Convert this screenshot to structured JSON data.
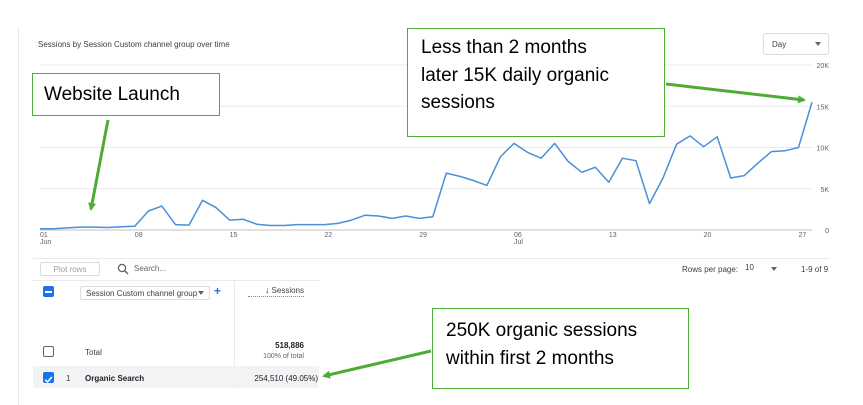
{
  "chart_title": "Sessions by Session Custom channel group over time",
  "granularity_select": {
    "value": "Day",
    "icon": "chevron-down-icon"
  },
  "chart_data": {
    "type": "line",
    "title": "Sessions by Session Custom channel group over time",
    "x_tick_labels": [
      {
        "day": 1,
        "label": "01",
        "sublabel": "Jun"
      },
      {
        "day": 8,
        "label": "08",
        "sublabel": ""
      },
      {
        "day": 15,
        "label": "15",
        "sublabel": ""
      },
      {
        "day": 22,
        "label": "22",
        "sublabel": ""
      },
      {
        "day": 29,
        "label": "29",
        "sublabel": ""
      },
      {
        "day": 36,
        "label": "06",
        "sublabel": "Jul"
      },
      {
        "day": 43,
        "label": "13",
        "sublabel": ""
      },
      {
        "day": 50,
        "label": "20",
        "sublabel": ""
      },
      {
        "day": 57,
        "label": "27",
        "sublabel": ""
      }
    ],
    "y_ticks": [
      {
        "value": 0,
        "label": "0"
      },
      {
        "value": 5000,
        "label": "5K"
      },
      {
        "value": 10000,
        "label": "10K"
      },
      {
        "value": 15000,
        "label": "15K"
      },
      {
        "value": 20000,
        "label": "20K"
      }
    ],
    "ylim": [
      0,
      20000
    ],
    "xlim": [
      1,
      58
    ],
    "grid": true,
    "series": [
      {
        "color": "#4a90d9",
        "points": [
          [
            1,
            150
          ],
          [
            2,
            150
          ],
          [
            3,
            250
          ],
          [
            4,
            350
          ],
          [
            5,
            350
          ],
          [
            6,
            300
          ],
          [
            7,
            400
          ],
          [
            8,
            450
          ],
          [
            9,
            2300
          ],
          [
            10,
            2900
          ],
          [
            11,
            650
          ],
          [
            12,
            600
          ],
          [
            13,
            3600
          ],
          [
            14,
            2700
          ],
          [
            15,
            1200
          ],
          [
            16,
            1300
          ],
          [
            17,
            700
          ],
          [
            18,
            550
          ],
          [
            19,
            550
          ],
          [
            20,
            650
          ],
          [
            21,
            650
          ],
          [
            22,
            650
          ],
          [
            23,
            800
          ],
          [
            24,
            1200
          ],
          [
            25,
            1800
          ],
          [
            26,
            1700
          ],
          [
            27,
            1400
          ],
          [
            28,
            1700
          ],
          [
            29,
            1400
          ],
          [
            30,
            1600
          ],
          [
            31,
            6900
          ],
          [
            32,
            6500
          ],
          [
            33,
            6000
          ],
          [
            34,
            5400
          ],
          [
            35,
            8900
          ],
          [
            36,
            10500
          ],
          [
            37,
            9400
          ],
          [
            38,
            8700
          ],
          [
            39,
            10500
          ],
          [
            40,
            8300
          ],
          [
            41,
            7000
          ],
          [
            42,
            7600
          ],
          [
            43,
            5800
          ],
          [
            44,
            8700
          ],
          [
            45,
            8400
          ],
          [
            46,
            3200
          ],
          [
            47,
            6300
          ],
          [
            48,
            10400
          ],
          [
            49,
            11400
          ],
          [
            50,
            10100
          ],
          [
            51,
            11300
          ],
          [
            52,
            6300
          ],
          [
            53,
            6600
          ],
          [
            54,
            8100
          ],
          [
            55,
            9500
          ],
          [
            56,
            9600
          ],
          [
            57,
            10000
          ],
          [
            58,
            15500
          ]
        ]
      }
    ]
  },
  "toolbar": {
    "plot_rows_label": "Plot rows",
    "search_placeholder": "Search...",
    "rows_per_page_label": "Rows per page:",
    "rows_per_page_value": "10",
    "pagination_text": "1-9 of 9"
  },
  "table": {
    "dimension_label": "Session Custom channel group",
    "metric_header": "Sessions",
    "total_label": "Total",
    "total_value": "518,886",
    "total_pct": "100% of total",
    "rows": [
      {
        "index": "1",
        "channel": "Organic Search",
        "sessions": "254,510 (49.05%)"
      }
    ]
  },
  "annotations": {
    "launch": "Website Launch",
    "fifteen_k": "Less than 2 months\nlater 15K daily organic\nsessions",
    "two_fifty_k": "250K organic sessions\nwithin first 2 months",
    "arrow_color": "#4eac34",
    "border_color": "#4eac34"
  }
}
